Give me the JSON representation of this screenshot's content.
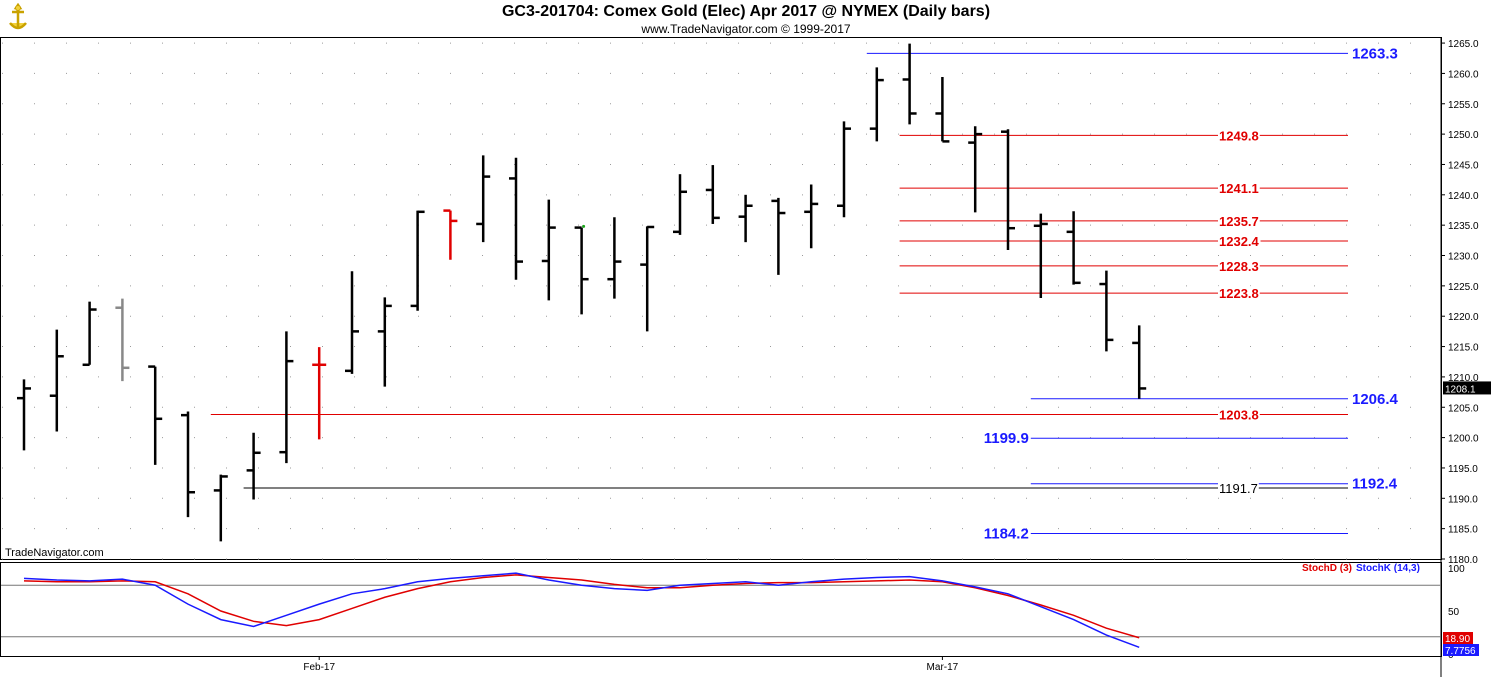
{
  "header": {
    "title": "GC3-201704:  Comex Gold (Elec) Apr 2017 @ NYMEX  (Daily bars)",
    "subtitle": "www.TradeNavigator.com © 1999-2017",
    "watermark": "TradeNavigator.com"
  },
  "colors": {
    "blue": "#1a1aff",
    "red": "#e00000",
    "gray": "#888888",
    "black": "#000000"
  },
  "chart_data": [
    {
      "type": "ohlc",
      "ylim": [
        1180,
        1266
      ],
      "yticks": [
        1265.0,
        1260.0,
        1255.0,
        1250.0,
        1245.0,
        1240.0,
        1235.0,
        1230.0,
        1225.0,
        1220.0,
        1215.0,
        1210.0,
        1205.0,
        1200.0,
        1195.0,
        1190.0,
        1185.0,
        1180.0
      ],
      "x_labels": [
        {
          "index": 9,
          "label": "Feb-17"
        },
        {
          "index": 28,
          "label": "Mar-17"
        }
      ],
      "last_price": "1208.1",
      "bars": [
        {
          "o": 1206.5,
          "h": 1209.6,
          "l": 1197.9,
          "c": 1208.1,
          "color": "black"
        },
        {
          "o": 1206.9,
          "h": 1217.8,
          "l": 1201.0,
          "c": 1213.4,
          "color": "black"
        },
        {
          "o": 1212.0,
          "h": 1222.4,
          "l": 1212.0,
          "c": 1221.1,
          "color": "black"
        },
        {
          "o": 1221.4,
          "h": 1222.9,
          "l": 1209.3,
          "c": 1211.5,
          "color": "gray"
        },
        {
          "o": 1211.7,
          "h": 1211.7,
          "l": 1195.5,
          "c": 1203.1,
          "color": "black"
        },
        {
          "o": 1203.7,
          "h": 1204.3,
          "l": 1186.9,
          "c": 1191.0,
          "color": "black"
        },
        {
          "o": 1191.3,
          "h": 1193.9,
          "l": 1182.9,
          "c": 1193.6,
          "color": "black"
        },
        {
          "o": 1194.6,
          "h": 1200.8,
          "l": 1189.8,
          "c": 1197.5,
          "color": "black"
        },
        {
          "o": 1197.6,
          "h": 1217.5,
          "l": 1195.8,
          "c": 1212.6,
          "color": "black"
        },
        {
          "o": 1212.0,
          "h": 1214.9,
          "l": 1199.7,
          "c": 1212.0,
          "color": "red"
        },
        {
          "o": 1211.0,
          "h": 1227.4,
          "l": 1210.5,
          "c": 1217.5,
          "color": "black"
        },
        {
          "o": 1217.5,
          "h": 1223.1,
          "l": 1208.4,
          "c": 1221.7,
          "color": "black"
        },
        {
          "o": 1221.7,
          "h": 1237.4,
          "l": 1220.9,
          "c": 1237.2,
          "color": "black"
        },
        {
          "o": 1237.4,
          "h": 1237.4,
          "l": 1229.3,
          "c": 1235.7,
          "color": "red"
        },
        {
          "o": 1235.2,
          "h": 1246.5,
          "l": 1232.2,
          "c": 1243.0,
          "color": "black"
        },
        {
          "o": 1242.7,
          "h": 1246.1,
          "l": 1226.0,
          "c": 1229.0,
          "color": "black"
        },
        {
          "o": 1229.1,
          "h": 1239.2,
          "l": 1222.6,
          "c": 1234.6,
          "color": "black"
        },
        {
          "o": 1234.6,
          "h": 1234.6,
          "l": 1220.3,
          "c": 1226.1,
          "color": "black"
        },
        {
          "o": 1226.1,
          "h": 1236.3,
          "l": 1222.9,
          "c": 1229.0,
          "color": "black"
        },
        {
          "o": 1228.5,
          "h": 1234.8,
          "l": 1217.5,
          "c": 1234.7,
          "color": "black"
        },
        {
          "o": 1233.9,
          "h": 1243.4,
          "l": 1233.4,
          "c": 1240.5,
          "color": "black"
        },
        {
          "o": 1240.8,
          "h": 1244.9,
          "l": 1235.2,
          "c": 1236.2,
          "color": "black"
        },
        {
          "o": 1236.4,
          "h": 1240.0,
          "l": 1232.2,
          "c": 1238.2,
          "color": "black"
        },
        {
          "o": 1239.0,
          "h": 1239.5,
          "l": 1226.8,
          "c": 1237.0,
          "color": "black"
        },
        {
          "o": 1237.2,
          "h": 1241.7,
          "l": 1231.2,
          "c": 1238.5,
          "color": "black"
        },
        {
          "o": 1238.2,
          "h": 1252.1,
          "l": 1236.3,
          "c": 1250.9,
          "color": "black"
        },
        {
          "o": 1250.9,
          "h": 1261.0,
          "l": 1248.8,
          "c": 1258.9,
          "color": "black"
        },
        {
          "o": 1259.0,
          "h": 1264.9,
          "l": 1251.6,
          "c": 1253.4,
          "color": "black"
        },
        {
          "o": 1253.4,
          "h": 1259.4,
          "l": 1248.8,
          "c": 1248.8,
          "color": "black"
        },
        {
          "o": 1248.6,
          "h": 1251.3,
          "l": 1237.1,
          "c": 1250.0,
          "color": "black"
        },
        {
          "o": 1250.4,
          "h": 1250.8,
          "l": 1230.9,
          "c": 1234.5,
          "color": "black"
        },
        {
          "o": 1234.9,
          "h": 1236.9,
          "l": 1223.0,
          "c": 1235.2,
          "color": "black"
        },
        {
          "o": 1233.9,
          "h": 1237.3,
          "l": 1225.2,
          "c": 1225.5,
          "color": "black"
        },
        {
          "o": 1225.3,
          "h": 1227.5,
          "l": 1214.2,
          "c": 1216.1,
          "color": "black"
        },
        {
          "o": 1215.6,
          "h": 1218.5,
          "l": 1206.4,
          "c": 1208.1,
          "color": "black"
        }
      ],
      "levels": [
        {
          "value": 1263.3,
          "label": "1263.3",
          "color": "blue",
          "from": 26,
          "label_side": "right"
        },
        {
          "value": 1249.8,
          "label": "1249.8",
          "color": "red",
          "from": 27,
          "label_side": "right"
        },
        {
          "value": 1241.1,
          "label": "1241.1",
          "color": "red",
          "from": 27,
          "label_side": "right"
        },
        {
          "value": 1235.7,
          "label": "1235.7",
          "color": "red",
          "from": 27,
          "label_side": "right"
        },
        {
          "value": 1232.4,
          "label": "1232.4",
          "color": "red",
          "from": 27,
          "label_side": "right"
        },
        {
          "value": 1228.3,
          "label": "1228.3",
          "color": "red",
          "from": 27,
          "label_side": "right"
        },
        {
          "value": 1223.8,
          "label": "1223.8",
          "color": "red",
          "from": 27,
          "label_side": "right"
        },
        {
          "value": 1206.4,
          "label": "1206.4",
          "color": "blue",
          "from": 31,
          "label_side": "right"
        },
        {
          "value": 1203.8,
          "label": "1203.8",
          "color": "red",
          "from": 6,
          "label_side": "right"
        },
        {
          "value": 1199.9,
          "label": "1199.9",
          "color": "blue",
          "from": 31,
          "label_side": "left"
        },
        {
          "value": 1192.4,
          "label": "1192.4",
          "color": "blue",
          "from": 31,
          "label_side": "right"
        },
        {
          "value": 1191.7,
          "label": "1191.7",
          "color": "black",
          "from": 7,
          "label_side": "right"
        },
        {
          "value": 1184.2,
          "label": "1184.2",
          "color": "blue",
          "from": 31,
          "label_side": "left"
        }
      ]
    },
    {
      "type": "line",
      "ylim": [
        0,
        100
      ],
      "yticks": [
        100,
        50,
        0
      ],
      "reference_lines": [
        80,
        20
      ],
      "legend": [
        {
          "name": "StochD (3)",
          "color": "red"
        },
        {
          "name": "StochK (14,3)",
          "color": "blue"
        }
      ],
      "last_values": {
        "d": "18.90",
        "k": "7.7756"
      },
      "series": [
        {
          "name": "StochD (3)",
          "color": "red",
          "values": [
            85,
            84,
            84,
            85,
            84,
            70,
            50,
            38,
            33,
            40,
            53,
            66,
            76,
            84,
            89,
            92,
            89,
            86,
            81,
            77,
            77,
            80,
            82,
            83,
            83,
            84,
            85,
            86,
            84,
            77,
            68,
            57,
            45,
            30,
            18.9
          ]
        },
        {
          "name": "StochK (14,3)",
          "color": "blue",
          "values": [
            88,
            86,
            85,
            87,
            80,
            58,
            40,
            32,
            45,
            58,
            70,
            76,
            84,
            88,
            91,
            94,
            86,
            80,
            76,
            74,
            80,
            82,
            84,
            80,
            84,
            87,
            89,
            90,
            85,
            78,
            70,
            55,
            40,
            22,
            7.78
          ]
        }
      ]
    }
  ]
}
